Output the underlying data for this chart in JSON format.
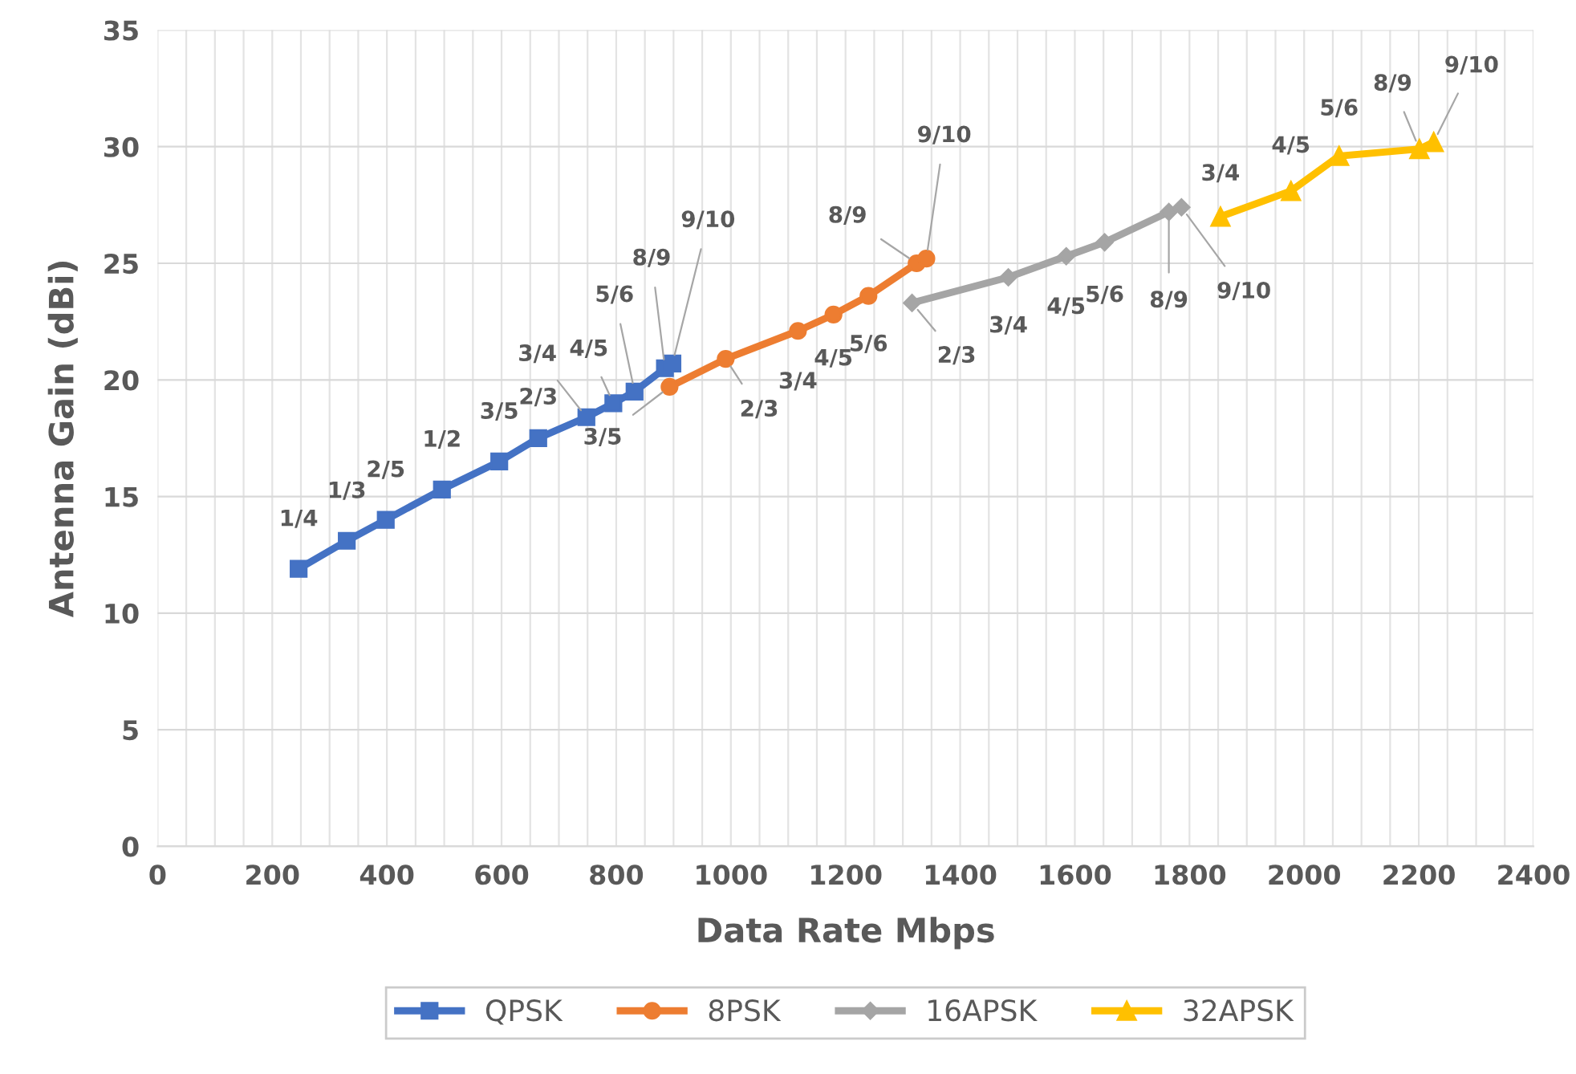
{
  "chart_data": {
    "type": "line",
    "xlabel": "Data Rate Mbps",
    "ylabel": "Antenna Gain (dBi)",
    "xlim": [
      0,
      2400
    ],
    "xticks": [
      0,
      200,
      400,
      600,
      800,
      1000,
      1200,
      1400,
      1600,
      1800,
      2000,
      2200,
      2400
    ],
    "ylim": [
      0,
      35
    ],
    "yticks": [
      0,
      5,
      10,
      15,
      20,
      25,
      30,
      35
    ],
    "grid": true,
    "legend": "bottom",
    "series": [
      {
        "name": "QPSK",
        "color": "#4472c4",
        "marker": "square",
        "x": [
          246,
          330,
          398,
          496,
          596,
          664,
          748,
          795,
          832,
          885,
          898
        ],
        "values": [
          11.9,
          13.1,
          14.0,
          15.3,
          16.5,
          17.5,
          18.4,
          19.0,
          19.5,
          20.5,
          20.7
        ]
      },
      {
        "name": "8PSK",
        "color": "#ed7d31",
        "marker": "circle",
        "x": [
          893,
          991,
          1117,
          1179,
          1240,
          1324,
          1341
        ],
        "values": [
          19.7,
          20.9,
          22.1,
          22.8,
          23.6,
          25.0,
          25.2
        ]
      },
      {
        "name": "16APSK",
        "color": "#a5a5a5",
        "marker": "diamond",
        "x": [
          1316,
          1484,
          1585,
          1652,
          1764,
          1786
        ],
        "values": [
          23.3,
          24.4,
          25.3,
          25.9,
          27.2,
          27.4
        ]
      },
      {
        "name": "32APSK",
        "color": "#ffc000",
        "marker": "triangle",
        "x": [
          1854,
          1977,
          2061,
          2201,
          2226
        ],
        "values": [
          27.0,
          28.1,
          29.6,
          29.9,
          30.2
        ]
      }
    ],
    "annotations": [
      {
        "text": "1/4",
        "x": 246,
        "y": 11.9
      },
      {
        "text": "1/3",
        "x": 330,
        "y": 13.1
      },
      {
        "text": "2/5",
        "x": 398,
        "y": 14.0
      },
      {
        "text": "1/2",
        "x": 496,
        "y": 15.3
      },
      {
        "text": "3/5",
        "x": 596,
        "y": 16.5
      },
      {
        "text": "2/3",
        "x": 664,
        "y": 17.5
      },
      {
        "text": "3/4",
        "x": 748,
        "y": 18.4
      },
      {
        "text": "4/5",
        "x": 795,
        "y": 19.0
      },
      {
        "text": "5/6",
        "x": 832,
        "y": 19.5
      },
      {
        "text": "8/9",
        "x": 885,
        "y": 20.5
      },
      {
        "text": "9/10",
        "x": 898,
        "y": 20.7
      },
      {
        "text": "3/5",
        "x": 893,
        "y": 19.7
      },
      {
        "text": "2/3",
        "x": 991,
        "y": 20.9
      },
      {
        "text": "3/4",
        "x": 1117,
        "y": 22.1
      },
      {
        "text": "4/5",
        "x": 1179,
        "y": 22.8
      },
      {
        "text": "5/6",
        "x": 1240,
        "y": 23.6
      },
      {
        "text": "8/9",
        "x": 1324,
        "y": 25.0
      },
      {
        "text": "9/10",
        "x": 1341,
        "y": 25.2
      },
      {
        "text": "2/3",
        "x": 1316,
        "y": 23.3
      },
      {
        "text": "3/4",
        "x": 1484,
        "y": 24.4
      },
      {
        "text": "4/5",
        "x": 1585,
        "y": 25.3
      },
      {
        "text": "5/6",
        "x": 1652,
        "y": 25.9
      },
      {
        "text": "8/9",
        "x": 1764,
        "y": 27.2
      },
      {
        "text": "9/10",
        "x": 1786,
        "y": 27.4
      },
      {
        "text": "3/4",
        "x": 1854,
        "y": 27.0
      },
      {
        "text": "4/5",
        "x": 1977,
        "y": 28.1
      },
      {
        "text": "5/6",
        "x": 2061,
        "y": 29.6
      },
      {
        "text": "8/9",
        "x": 2201,
        "y": 29.9
      },
      {
        "text": "9/10",
        "x": 2226,
        "y": 30.2
      }
    ]
  }
}
